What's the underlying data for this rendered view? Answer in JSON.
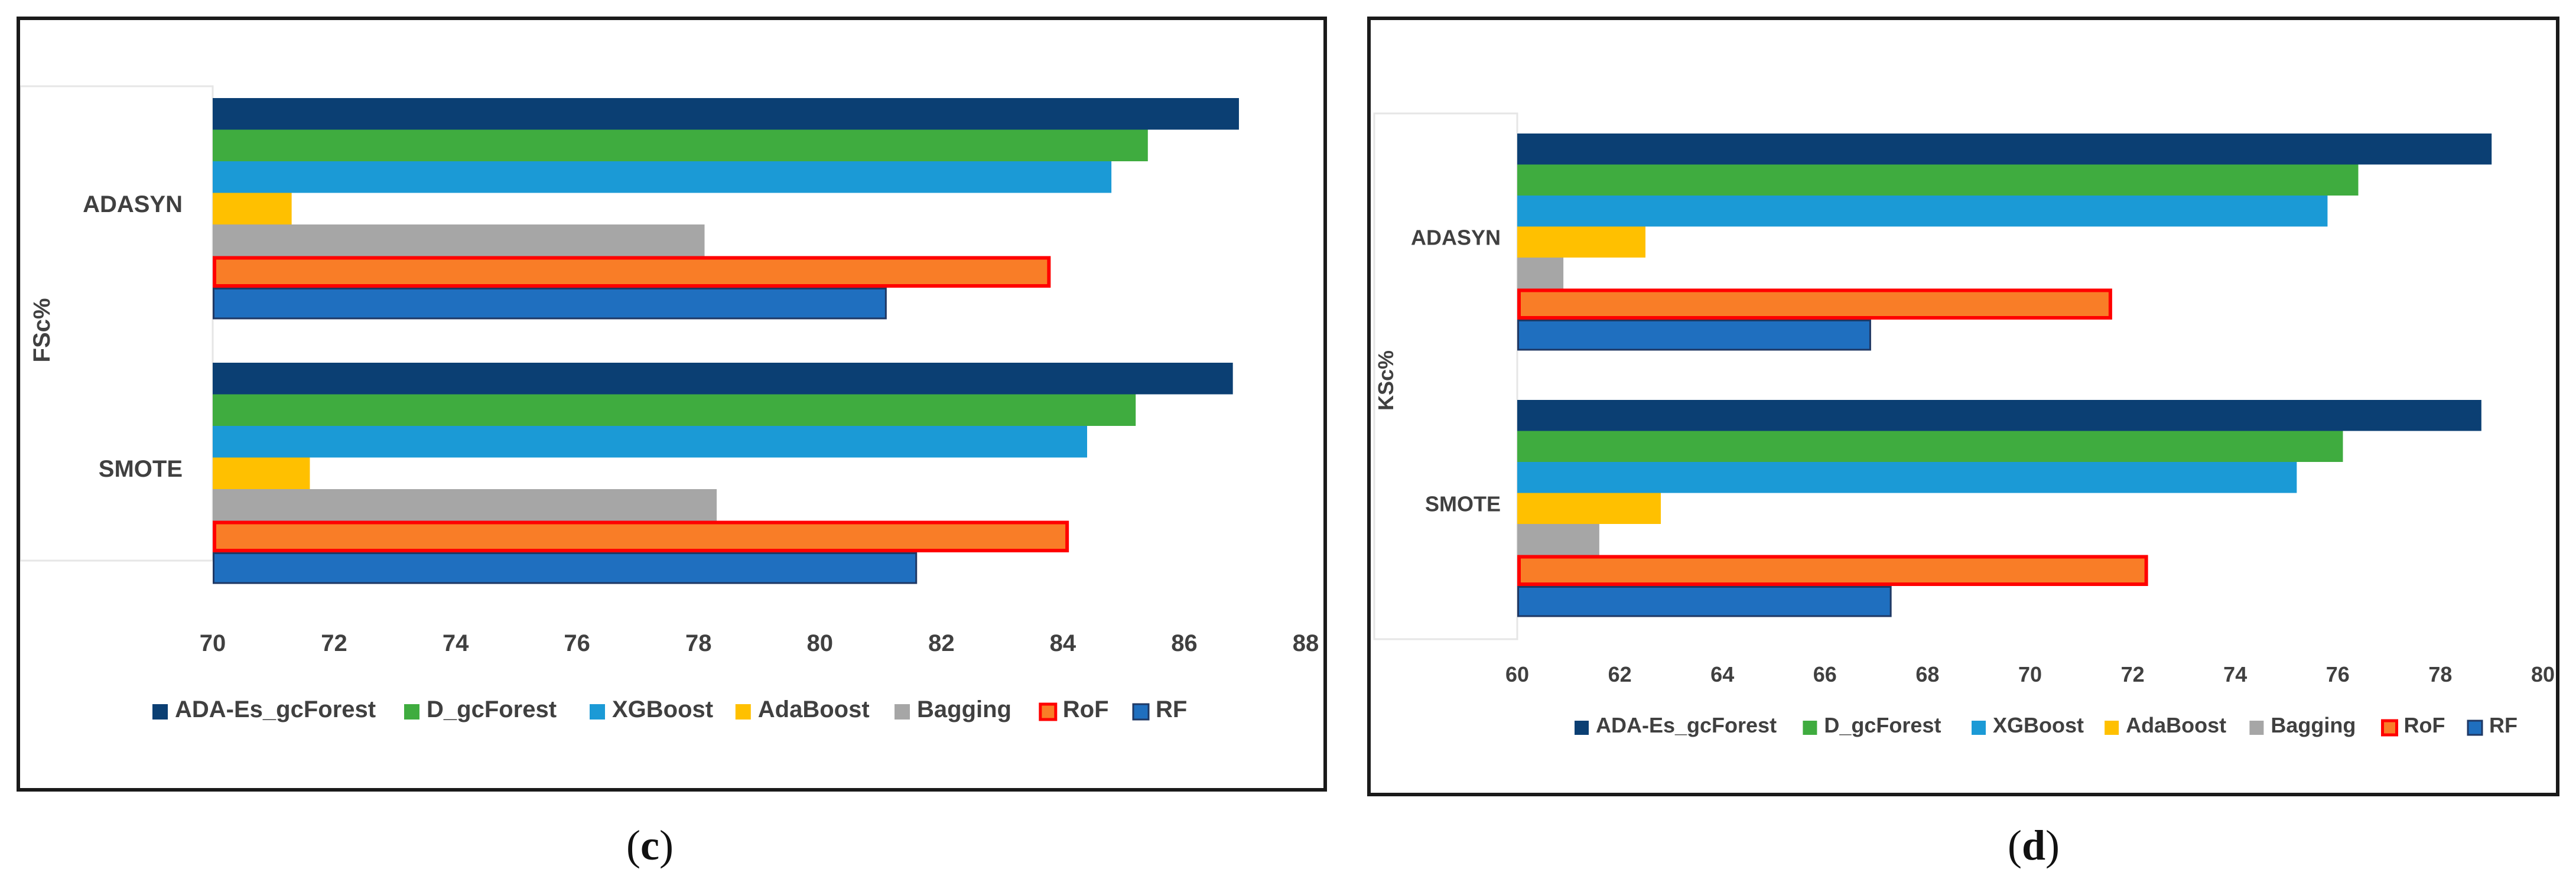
{
  "charts": {
    "c": {
      "caption": {
        "open": "(",
        "letter": "c",
        "close": ")"
      },
      "chart_data": {
        "type": "bar",
        "orientation": "horizontal",
        "ylabel": "FSc%",
        "categories": [
          "ADASYN",
          "SMOTE"
        ],
        "xlim": [
          70,
          88
        ],
        "xticks": [
          70,
          72,
          74,
          76,
          78,
          80,
          82,
          84,
          86,
          88
        ],
        "legend_position": "bottom",
        "series": [
          {
            "name": "ADA-Es_gcForest",
            "color": "#0b3f73",
            "values": [
              86.9,
              86.8
            ]
          },
          {
            "name": "D_gcForest",
            "color": "#3fac3f",
            "values": [
              85.4,
              85.2
            ]
          },
          {
            "name": "XGBoost",
            "color": "#1b9ad6",
            "values": [
              84.8,
              84.4
            ]
          },
          {
            "name": "AdaBoost",
            "color": "#ffc000",
            "values": [
              71.3,
              71.6
            ]
          },
          {
            "name": "Bagging",
            "color": "#a6a6a6",
            "values": [
              78.1,
              78.3
            ]
          },
          {
            "name": "RoF",
            "color": "#f97d27",
            "outline": "#ff0000",
            "values": [
              83.8,
              84.1
            ]
          },
          {
            "name": "RF",
            "color": "#1f6fbf",
            "outline": "#1f3864",
            "values": [
              81.1,
              81.6
            ]
          }
        ]
      }
    },
    "d": {
      "caption": {
        "open": "(",
        "letter": "d",
        "close": ")"
      },
      "chart_data": {
        "type": "bar",
        "orientation": "horizontal",
        "ylabel": "KSc%",
        "categories": [
          "ADASYN",
          "SMOTE"
        ],
        "xlim": [
          60,
          80
        ],
        "xticks": [
          60,
          62,
          64,
          66,
          68,
          70,
          72,
          74,
          76,
          78,
          80
        ],
        "legend_position": "bottom",
        "series": [
          {
            "name": "ADA-Es_gcForest",
            "color": "#0b3f73",
            "values": [
              79.0,
              78.8
            ]
          },
          {
            "name": "D_gcForest",
            "color": "#3fac3f",
            "values": [
              76.4,
              76.1
            ]
          },
          {
            "name": "XGBoost",
            "color": "#1b9ad6",
            "values": [
              75.8,
              75.2
            ]
          },
          {
            "name": "AdaBoost",
            "color": "#ffc000",
            "values": [
              62.5,
              62.8
            ]
          },
          {
            "name": "Bagging",
            "color": "#a6a6a6",
            "values": [
              60.9,
              61.6
            ]
          },
          {
            "name": "RoF",
            "color": "#f97d27",
            "outline": "#ff0000",
            "values": [
              71.6,
              72.3
            ]
          },
          {
            "name": "RF",
            "color": "#1f6fbf",
            "outline": "#1f3864",
            "values": [
              66.9,
              67.3
            ]
          }
        ]
      }
    }
  }
}
